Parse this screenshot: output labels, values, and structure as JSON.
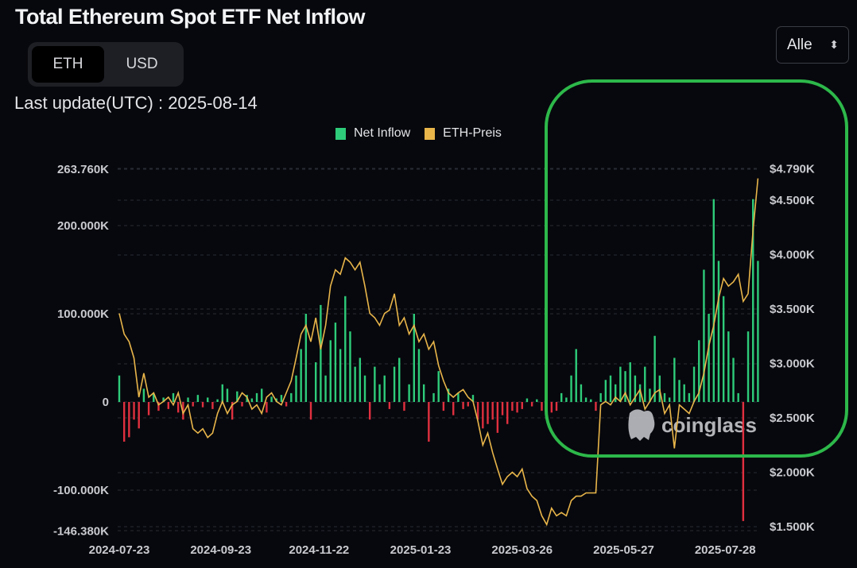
{
  "header": {
    "title": "Total Ethereum Spot ETF Net Inflow",
    "last_update_label": "Last update(UTC) : 2025-08-14"
  },
  "toggle": {
    "options": [
      "ETH",
      "USD"
    ],
    "active": "ETH"
  },
  "range_select": {
    "value": "Alle"
  },
  "watermark": "coinglass",
  "colors": {
    "positive": "#2ecc7a",
    "negative": "#e0303f",
    "price": "#e8b54a",
    "annotation": "#2db84a"
  },
  "chart_data": {
    "type": "bar+line",
    "title": "Total Ethereum Spot ETF Net Inflow",
    "legend": [
      "Net Inflow",
      "ETH-Preis"
    ],
    "legend_position": "top-center",
    "start_date": "2024-07-23",
    "interval_days": 3,
    "left_axis": {
      "unit": "K ETH",
      "ticks": [
        "263.760K",
        "200.000K",
        "100.000K",
        "0",
        "-100.000K",
        "-146.380K"
      ],
      "tick_values": [
        263.76,
        200,
        100,
        0,
        -100,
        -146.38
      ],
      "range": [
        -146.38,
        263.76
      ]
    },
    "right_axis": {
      "unit": "USD",
      "ticks": [
        "$4.790K",
        "$4.500K",
        "$4.000K",
        "$3.500K",
        "$3.000K",
        "$2.500K",
        "$2.000K",
        "$1.500K"
      ],
      "tick_values": [
        4790,
        4500,
        4000,
        3500,
        3000,
        2500,
        2000,
        1500
      ],
      "range": [
        1500,
        4790
      ]
    },
    "x_ticks": [
      "2024-07-23",
      "2024-09-23",
      "2024-11-22",
      "2025-01-23",
      "2025-03-26",
      "2025-05-27",
      "2025-07-28"
    ],
    "series": [
      {
        "name": "Net Inflow",
        "axis": "left",
        "values": [
          30,
          -45,
          -40,
          -20,
          -30,
          15,
          -15,
          10,
          -10,
          5,
          -8,
          10,
          -12,
          -20,
          5,
          -5,
          8,
          -6,
          5,
          -8,
          3,
          20,
          15,
          -20,
          12,
          -5,
          8,
          4,
          10,
          15,
          -12,
          6,
          4,
          8,
          -5,
          10,
          30,
          60,
          100,
          -20,
          45,
          110,
          30,
          70,
          90,
          60,
          120,
          80,
          40,
          50,
          30,
          -20,
          40,
          20,
          30,
          -8,
          40,
          50,
          -10,
          20,
          100,
          60,
          20,
          -45,
          10,
          35,
          -10,
          15,
          -15,
          10,
          -8,
          -5,
          8,
          -20,
          -30,
          -25,
          -20,
          -35,
          -15,
          -25,
          -10,
          -12,
          -8,
          4,
          -5,
          3,
          -10,
          8,
          -12,
          -10,
          10,
          5,
          30,
          60,
          20,
          5,
          3,
          -10,
          10,
          25,
          30,
          20,
          40,
          35,
          45,
          30,
          20,
          40,
          15,
          75,
          30,
          10,
          5,
          50,
          25,
          20,
          10,
          40,
          70,
          150,
          100,
          230,
          160,
          120,
          80,
          50,
          10,
          -135,
          80,
          230,
          160
        ]
      },
      {
        "name": "ETH-Preis",
        "axis": "right",
        "values": [
          3460,
          3270,
          3200,
          3050,
          2690,
          2910,
          2690,
          2730,
          2620,
          2650,
          2690,
          2620,
          2730,
          2540,
          2620,
          2400,
          2360,
          2400,
          2320,
          2360,
          2540,
          2650,
          2540,
          2620,
          2650,
          2730,
          2690,
          2580,
          2620,
          2540,
          2690,
          2730,
          2650,
          2620,
          2730,
          2840,
          3050,
          3270,
          3350,
          3200,
          3420,
          3130,
          3350,
          3710,
          3860,
          3820,
          3970,
          3930,
          3860,
          3930,
          3710,
          3460,
          3420,
          3350,
          3460,
          3490,
          3640,
          3350,
          3420,
          3270,
          3350,
          3200,
          3270,
          3130,
          3200,
          2980,
          2840,
          2730,
          2690,
          2730,
          2760,
          2690,
          2650,
          2470,
          2250,
          2360,
          2180,
          2030,
          1890,
          1960,
          2000,
          1960,
          2030,
          1850,
          1780,
          1740,
          1600,
          1520,
          1670,
          1600,
          1630,
          1600,
          1740,
          1780,
          1780,
          1810,
          1810,
          1810,
          2620,
          2650,
          2620,
          2690,
          2650,
          2730,
          2620,
          2690,
          2760,
          2580,
          2650,
          2730,
          2760,
          2540,
          2620,
          2220,
          2620,
          2580,
          2540,
          2650,
          2730,
          2910,
          3160,
          3350,
          3600,
          3780,
          3710,
          3750,
          3820,
          3570,
          3640,
          4220,
          4700
        ]
      }
    ]
  }
}
